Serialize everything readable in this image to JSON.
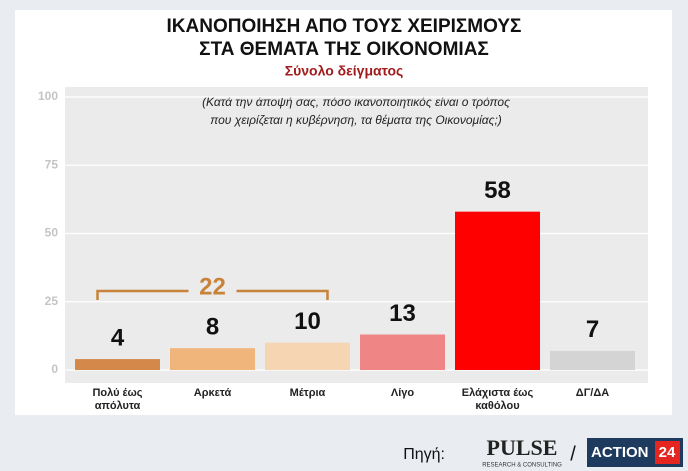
{
  "chart_data": {
    "type": "bar",
    "title_lines": [
      "ΙΚΑΝΟΠΟΙΗΣΗ ΑΠΟ ΤΟΥΣ ΧΕΙΡΙΣΜΟΥΣ",
      "ΣΤΑ ΘΕΜΑΤΑ ΤΗΣ ΟΙΚΟΝΟΜΙΑΣ"
    ],
    "subtitle": "Σύνολο δείγματος",
    "question_lines": [
      "(Κατά την άποψή σας, πόσο ικανοποιητικός είναι ο τρόπος",
      "που χειρίζεται η κυβέρνηση, τα θέματα της Οικονομίας;)"
    ],
    "categories": [
      "Πολύ έως απόλυτα",
      "Αρκετά",
      "Μέτρια",
      "Λίγο",
      "Ελάχιστα έως καθόλου",
      "ΔΓ/ΔΑ"
    ],
    "values": [
      4,
      8,
      10,
      13,
      58,
      7
    ],
    "colors": [
      "#d4894a",
      "#f0b57a",
      "#f6d5b2",
      "#f08585",
      "#ff0000",
      "#d4d4d4"
    ],
    "annotation": "22",
    "ylim": [
      0,
      100
    ],
    "yticks": [
      0,
      25,
      50,
      75,
      100
    ],
    "grid": true
  },
  "footer": {
    "source_label": "Πηγή:",
    "separator": "/",
    "logo1": "PULSE",
    "logo1_sub": "RESEARCH & CONSULTING",
    "logo2": "ACTION",
    "logo2_num": "24"
  }
}
